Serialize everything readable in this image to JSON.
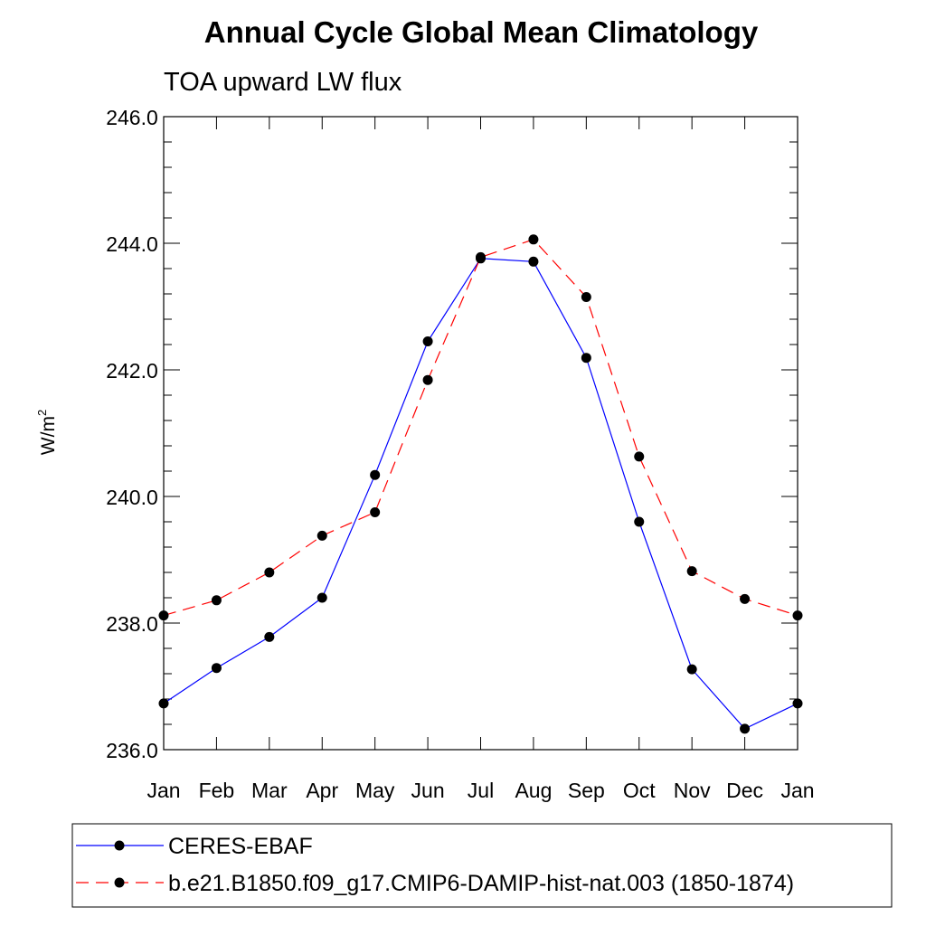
{
  "chart_data": {
    "type": "line",
    "title": "Annual Cycle Global Mean Climatology",
    "subtitle": "TOA upward LW flux",
    "ylabel": "W/m",
    "ylabel_superscript": "2",
    "ylim": [
      236.0,
      246.0
    ],
    "yticks": [
      "236.0",
      "238.0",
      "240.0",
      "242.0",
      "244.0",
      "246.0"
    ],
    "categories": [
      "Jan",
      "Feb",
      "Mar",
      "Apr",
      "May",
      "Jun",
      "Jul",
      "Aug",
      "Sep",
      "Oct",
      "Nov",
      "Dec",
      "Jan"
    ],
    "series": [
      {
        "name": "CERES-EBAF",
        "color": "#0000ff",
        "dash": "solid",
        "values": [
          236.73,
          237.29,
          237.78,
          238.4,
          240.34,
          242.45,
          243.76,
          243.71,
          242.19,
          239.6,
          237.27,
          236.33,
          236.73
        ]
      },
      {
        "name": "b.e21.B1850.f09_g17.CMIP6-DAMIP-hist-nat.003 (1850-1874)",
        "color": "#ff0000",
        "dash": "dashed",
        "values": [
          238.12,
          238.36,
          238.8,
          239.38,
          239.75,
          241.84,
          243.78,
          244.06,
          243.15,
          240.63,
          238.82,
          238.38,
          238.12
        ]
      }
    ],
    "marker_color": "#000000",
    "grid": false,
    "legend_position": "bottom"
  }
}
